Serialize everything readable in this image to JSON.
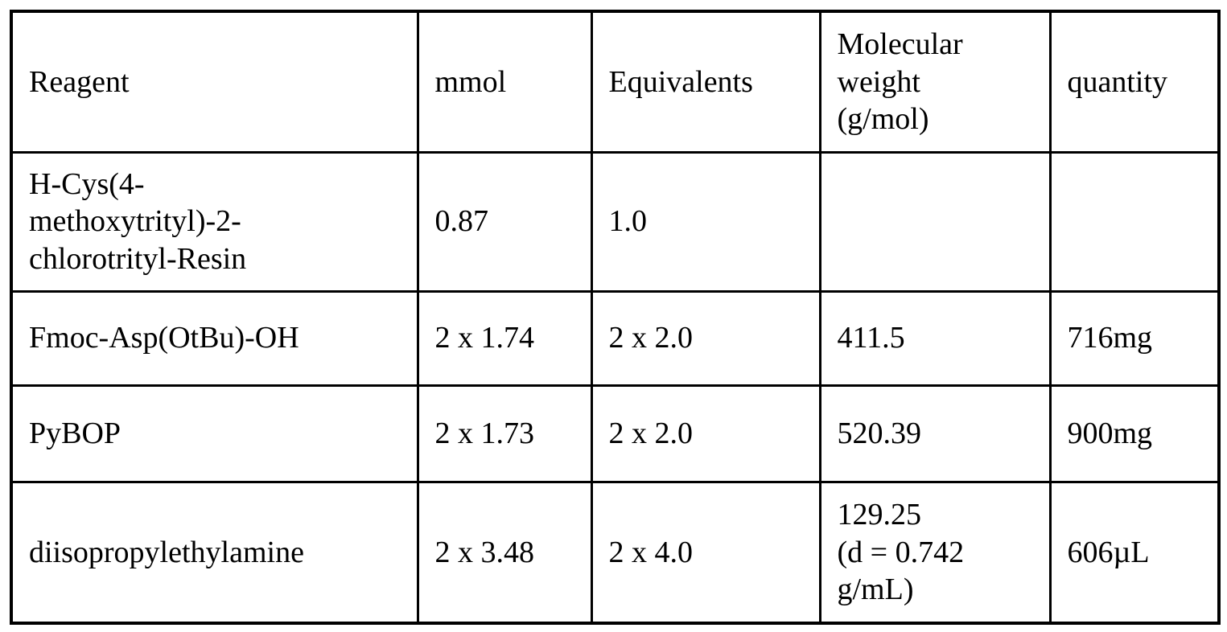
{
  "table": {
    "title": "reagent-quantities-table",
    "colors": {
      "border": "#000000",
      "text": "#000000",
      "background": "#ffffff"
    },
    "columns": [
      {
        "key": "reagent",
        "label": "Reagent"
      },
      {
        "key": "mmol",
        "label": "mmol"
      },
      {
        "key": "equivalents",
        "label": "Equivalents"
      },
      {
        "key": "molecular_weight",
        "label": "Molecular\nweight\n(g/mol)"
      },
      {
        "key": "quantity",
        "label": "quantity"
      }
    ],
    "rows": [
      {
        "reagent": "H-Cys(4-\nmethoxytrityl)-2-\nchlorotrityl-Resin",
        "mmol": "0.87",
        "equivalents": "1.0",
        "molecular_weight": "",
        "quantity": ""
      },
      {
        "reagent": "Fmoc-Asp(OtBu)-OH",
        "mmol": "2 x 1.74",
        "equivalents": "2 x 2.0",
        "molecular_weight": "411.5",
        "quantity": "716mg"
      },
      {
        "reagent": "PyBOP",
        "mmol": "2 x 1.73",
        "equivalents": "2 x 2.0",
        "molecular_weight": "520.39",
        "quantity": "900mg"
      },
      {
        "reagent": "diisopropylethylamine",
        "mmol": "2 x 3.48",
        "equivalents": "2 x 4.0",
        "molecular_weight": "129.25\n(d = 0.742\ng/mL)",
        "quantity": "606µL"
      }
    ]
  }
}
